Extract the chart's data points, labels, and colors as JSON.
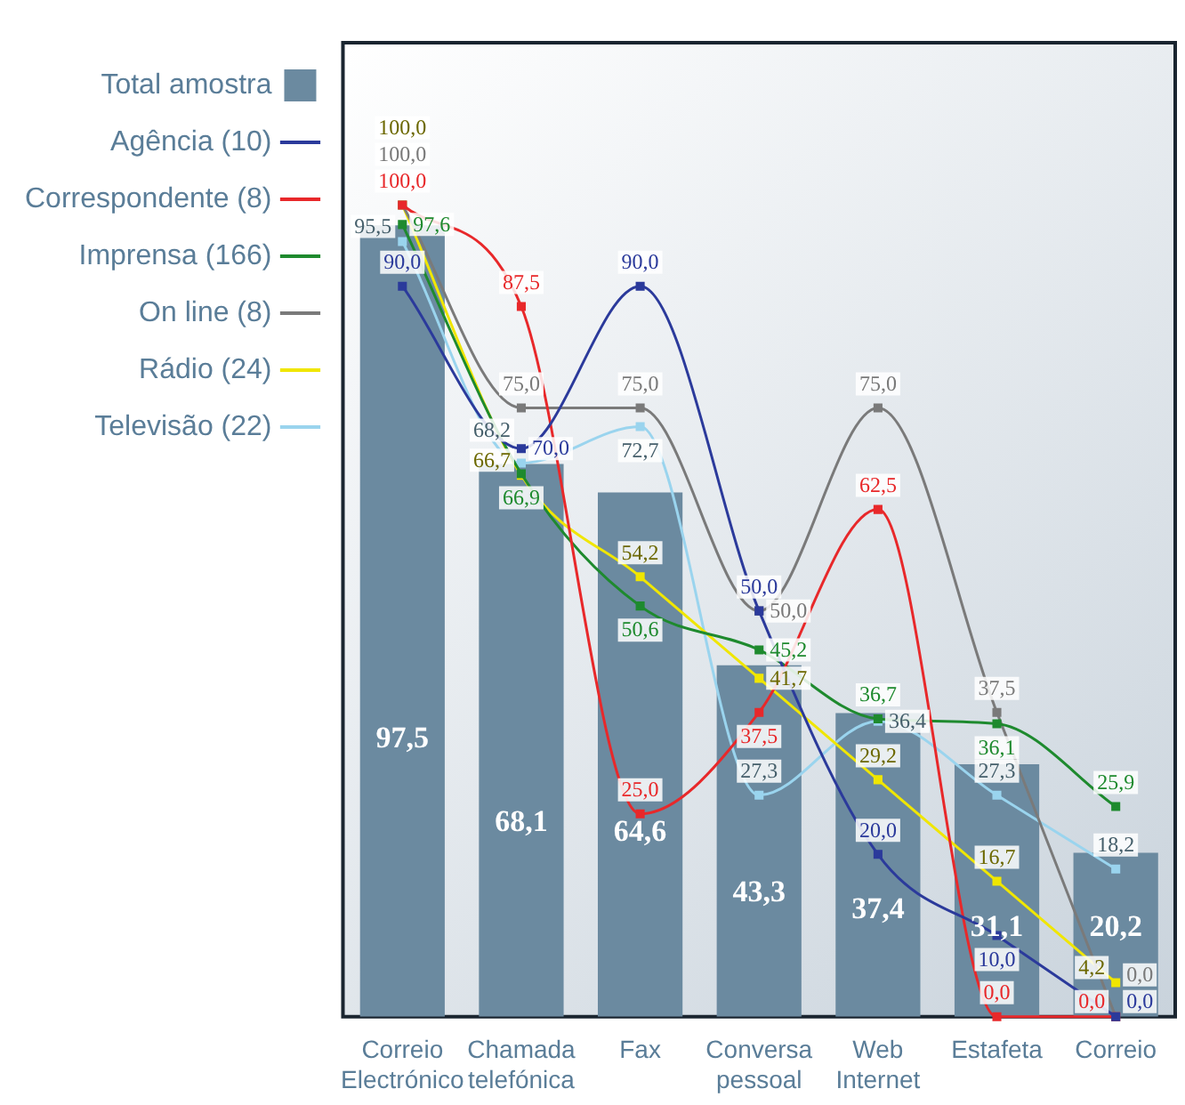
{
  "chart_data": {
    "type": "bar",
    "categories": [
      "Correio Electrónico",
      "Chamada telefónica",
      "Fax",
      "Conversa pessoal",
      "Web Internet",
      "Estafeta",
      "Correio"
    ],
    "series": [
      {
        "name": "Total amostra",
        "color": "#6b8aa0",
        "values": [
          97.5,
          68.1,
          64.6,
          43.3,
          37.4,
          31.1,
          20.2
        ],
        "value_labels": [
          "97,5",
          "68,1",
          "64,6",
          "43,3",
          "37,4",
          "31,1",
          "20,2"
        ]
      },
      {
        "name": "Agência (10)",
        "type": "line",
        "color": "#2b3a9b",
        "values": [
          90.0,
          70.0,
          90.0,
          50.0,
          20.0,
          10.0,
          0.0
        ],
        "value_labels": [
          "90,0",
          "70,0",
          "90,0",
          "50,0",
          "20,0",
          "10,0",
          "0,0"
        ]
      },
      {
        "name": "Correspondente (8)",
        "type": "line",
        "color": "#e8282a",
        "values": [
          100.0,
          87.5,
          25.0,
          37.5,
          62.5,
          0.0,
          0.0
        ],
        "value_labels": [
          "100,0",
          "87,5",
          "25,0",
          "37,5",
          "62,5",
          "0,0",
          "0,0"
        ]
      },
      {
        "name": "Imprensa (166)",
        "type": "line",
        "color": "#1e8a2e",
        "values": [
          97.6,
          66.9,
          50.6,
          45.2,
          36.7,
          36.1,
          25.9
        ],
        "value_labels": [
          "97,6",
          "66,9",
          "50,6",
          "45,2",
          "36,7",
          "36,1",
          "25,9"
        ]
      },
      {
        "name": "On line (8)",
        "type": "line",
        "color": "#7a7a7a",
        "values": [
          100.0,
          75.0,
          75.0,
          50.0,
          75.0,
          37.5,
          0.0
        ],
        "value_labels": [
          "100,0",
          "75,0",
          "75,0",
          "50,0",
          "75,0",
          "37,5",
          "0,0"
        ]
      },
      {
        "name": "Rádio (24)",
        "type": "line",
        "color": "#f0e600",
        "values": [
          100.0,
          66.7,
          54.2,
          41.7,
          29.2,
          16.7,
          4.2
        ],
        "value_labels": [
          "100,0",
          "66,7",
          "54,2",
          "41,7",
          "29,2",
          "16,7",
          "4,2"
        ]
      },
      {
        "name": "Televisão (22)",
        "type": "line",
        "color": "#9ad4ee",
        "values": [
          95.5,
          68.2,
          72.7,
          27.3,
          36.4,
          27.3,
          18.2
        ],
        "value_labels": [
          "95,5",
          "68,2",
          "72,7",
          "27,3",
          "36,4",
          "27,3",
          "18,2"
        ]
      }
    ],
    "tick_labels": "x",
    "grid": false,
    "legend": "left",
    "marker": "square"
  }
}
